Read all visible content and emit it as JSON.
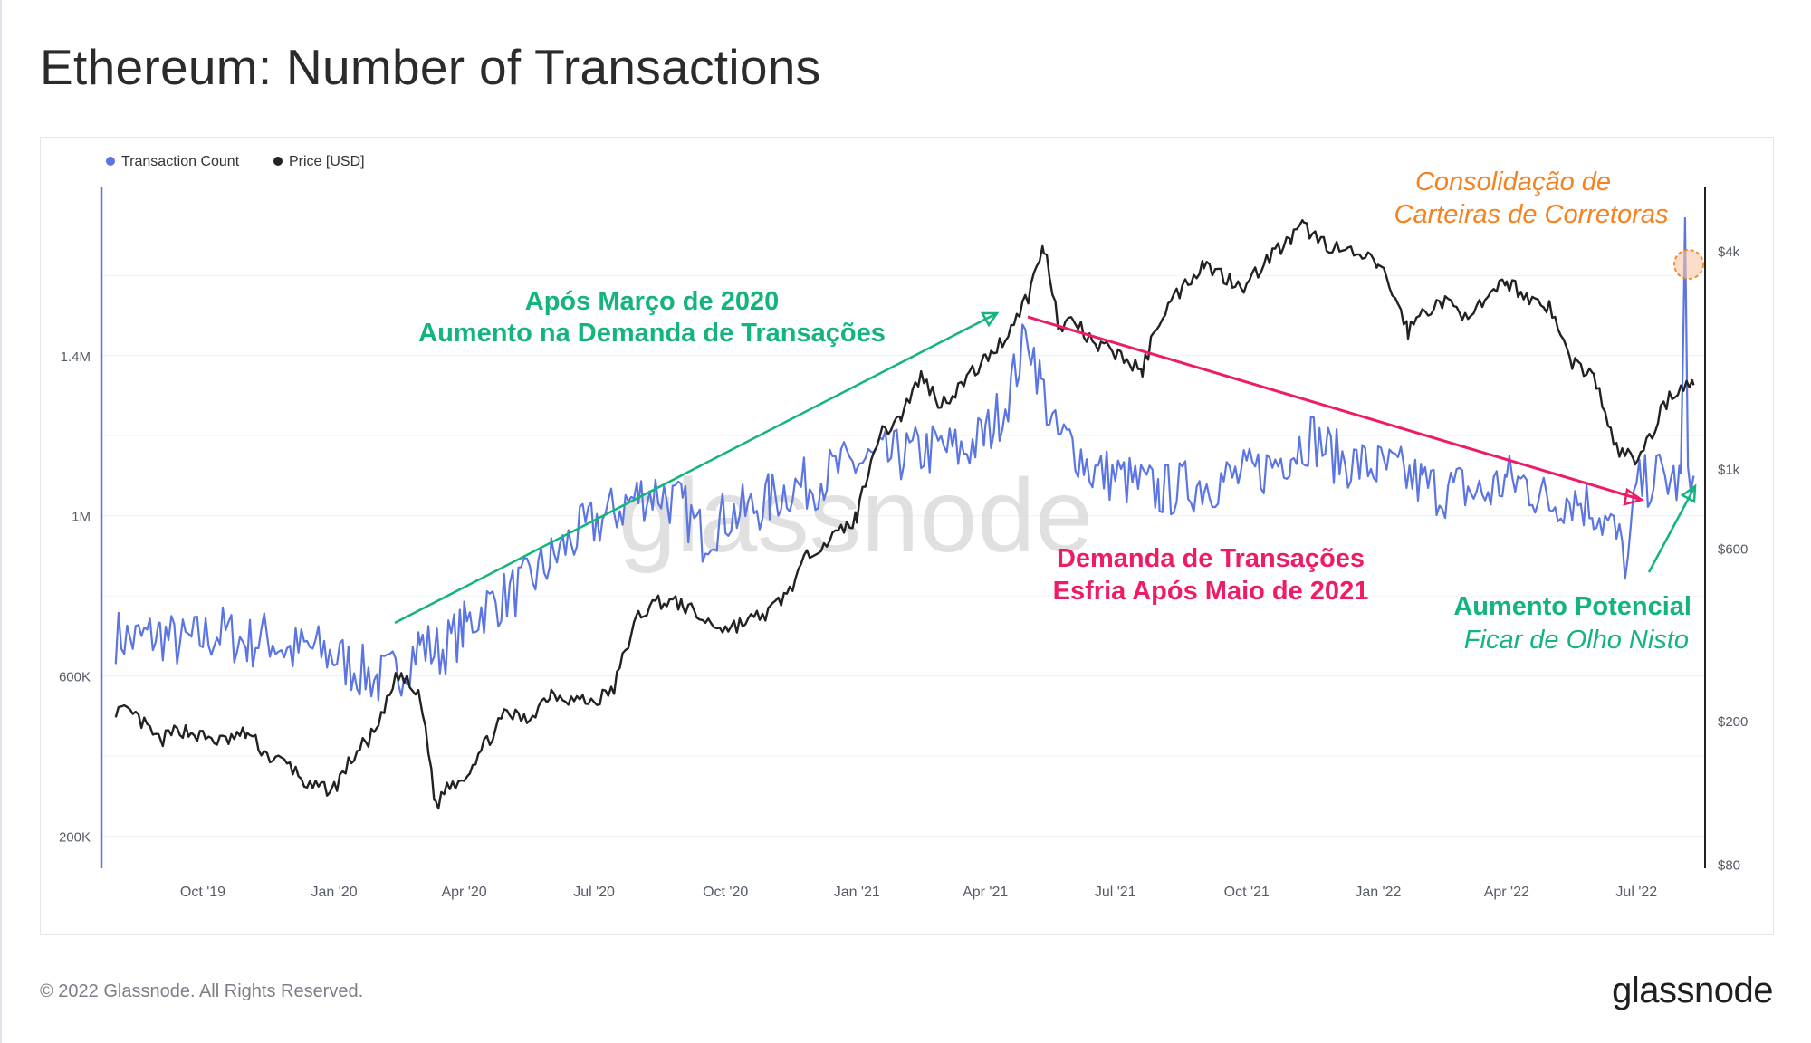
{
  "title": "Ethereum: Number of Transactions",
  "footer": {
    "copyright": "© 2022 Glassnode. All Rights Reserved.",
    "logo": "glassnode"
  },
  "watermark": "glassnode",
  "colors": {
    "transaction_count": "#5b75e3",
    "price": "#222222",
    "annotation_green": "#13b57a",
    "annotation_pink": "#ee1c68",
    "annotation_orange": "#f58220",
    "grid": "#eceff3",
    "tick_text": "#555b66"
  },
  "annotations": [
    {
      "lines": [
        "Após Março de 2020",
        "Aumento na Demanda de Transações"
      ],
      "color": "#13b57a",
      "italic": false,
      "bold": true
    },
    {
      "lines": [
        "Demanda de Transações",
        "Esfria Após Maio de 2021"
      ],
      "color": "#ee1c68",
      "italic": false,
      "bold": true
    },
    {
      "lines": [
        "Consolidação de",
        "Carteiras de Corretoras"
      ],
      "color": "#f58220",
      "italic": true,
      "bold": false
    },
    {
      "lines": [
        "Aumento Potencial"
      ],
      "color": "#13b57a",
      "italic": false,
      "bold": true
    },
    {
      "lines": [
        "Ficar de Olho Nisto"
      ],
      "color": "#13b57a",
      "italic": true,
      "bold": false
    }
  ],
  "chart_data": {
    "type": "line",
    "title": "Ethereum: Number of Transactions",
    "legend": {
      "placement": "top-left",
      "entries": [
        "Transaction Count",
        "Price [USD]"
      ]
    },
    "x_ticks": [
      "Oct '19",
      "Jan '20",
      "Apr '20",
      "Jul '20",
      "Oct '20",
      "Jan '21",
      "Apr '21",
      "Jul '21",
      "Oct '21",
      "Jan '22",
      "Apr '22",
      "Jul '22"
    ],
    "y_left": {
      "scale": "linear",
      "ticks": [
        "200K",
        "600K",
        "1M",
        "1.4M"
      ],
      "tick_values": [
        200000,
        600000,
        1000000,
        1400000
      ],
      "range": [
        120000,
        1820000
      ]
    },
    "y_right": {
      "scale": "log",
      "ticks": [
        "$80",
        "$200",
        "$600",
        "$1k",
        "$4k"
      ],
      "tick_values": [
        80,
        200,
        600,
        1000,
        4000
      ],
      "range": [
        78,
        6000
      ]
    },
    "grid": true,
    "series": [
      {
        "name": "Transaction Count",
        "axis": "left",
        "x": [
          "2019-08-01",
          "2019-08-15",
          "2019-09-01",
          "2019-09-15",
          "2019-10-01",
          "2019-10-15",
          "2019-11-01",
          "2019-11-15",
          "2019-12-01",
          "2019-12-15",
          "2020-01-01",
          "2020-01-15",
          "2020-02-01",
          "2020-02-15",
          "2020-03-01",
          "2020-03-15",
          "2020-04-01",
          "2020-04-15",
          "2020-05-01",
          "2020-05-15",
          "2020-06-01",
          "2020-06-15",
          "2020-07-01",
          "2020-07-15",
          "2020-08-01",
          "2020-08-15",
          "2020-09-01",
          "2020-09-15",
          "2020-10-01",
          "2020-10-15",
          "2020-11-01",
          "2020-11-15",
          "2020-12-01",
          "2020-12-15",
          "2021-01-01",
          "2021-01-15",
          "2021-02-01",
          "2021-02-15",
          "2021-03-01",
          "2021-03-15",
          "2021-04-01",
          "2021-04-15",
          "2021-05-01",
          "2021-05-10",
          "2021-05-20",
          "2021-06-01",
          "2021-06-15",
          "2021-07-01",
          "2021-07-15",
          "2021-08-01",
          "2021-08-15",
          "2021-09-01",
          "2021-09-15",
          "2021-10-01",
          "2021-10-15",
          "2021-11-01",
          "2021-11-15",
          "2021-12-01",
          "2021-12-15",
          "2022-01-01",
          "2022-01-15",
          "2022-02-01",
          "2022-02-15",
          "2022-03-01",
          "2022-03-15",
          "2022-04-01",
          "2022-04-15",
          "2022-05-01",
          "2022-05-15",
          "2022-06-01",
          "2022-06-15",
          "2022-06-25",
          "2022-07-01",
          "2022-07-15",
          "2022-08-01",
          "2022-08-04",
          "2022-08-06",
          "2022-08-10"
        ],
        "values": [
          700000,
          690000,
          705000,
          680000,
          695000,
          710000,
          680000,
          700000,
          660000,
          670000,
          650000,
          620000,
          590000,
          610000,
          680000,
          660000,
          720000,
          770000,
          800000,
          830000,
          890000,
          940000,
          980000,
          1010000,
          1050000,
          1060000,
          1020000,
          950000,
          1000000,
          1010000,
          1040000,
          1070000,
          1080000,
          1110000,
          1130000,
          1140000,
          1150000,
          1160000,
          1170000,
          1160000,
          1200000,
          1280000,
          1460000,
          1330000,
          1200000,
          1180000,
          1110000,
          1100000,
          1080000,
          1060000,
          1070000,
          1080000,
          1090000,
          1100000,
          1120000,
          1160000,
          1200000,
          1150000,
          1130000,
          1120000,
          1110000,
          1080000,
          1060000,
          1070000,
          1050000,
          1090000,
          1080000,
          1030000,
          1050000,
          1020000,
          960000,
          880000,
          1070000,
          1100000,
          1080000,
          1680000,
          1150000,
          1100000
        ]
      },
      {
        "name": "Price [USD]",
        "axis": "right",
        "x": [
          "2019-08-01",
          "2019-08-15",
          "2019-09-01",
          "2019-09-15",
          "2019-10-01",
          "2019-10-15",
          "2019-11-01",
          "2019-11-15",
          "2019-12-01",
          "2019-12-15",
          "2020-01-01",
          "2020-01-15",
          "2020-02-01",
          "2020-02-15",
          "2020-03-01",
          "2020-03-12",
          "2020-03-20",
          "2020-04-01",
          "2020-04-15",
          "2020-05-01",
          "2020-05-15",
          "2020-06-01",
          "2020-06-15",
          "2020-07-01",
          "2020-07-15",
          "2020-08-01",
          "2020-08-15",
          "2020-09-01",
          "2020-09-15",
          "2020-10-01",
          "2020-10-15",
          "2020-11-01",
          "2020-11-15",
          "2020-12-01",
          "2020-12-15",
          "2021-01-01",
          "2021-01-15",
          "2021-02-01",
          "2021-02-15",
          "2021-03-01",
          "2021-03-15",
          "2021-04-01",
          "2021-04-15",
          "2021-05-01",
          "2021-05-12",
          "2021-05-23",
          "2021-06-01",
          "2021-06-15",
          "2021-07-01",
          "2021-07-20",
          "2021-08-01",
          "2021-08-15",
          "2021-09-01",
          "2021-09-15",
          "2021-10-01",
          "2021-10-15",
          "2021-11-01",
          "2021-11-10",
          "2021-11-20",
          "2021-12-01",
          "2021-12-15",
          "2022-01-01",
          "2022-01-22",
          "2022-02-01",
          "2022-02-15",
          "2022-03-01",
          "2022-03-15",
          "2022-04-01",
          "2022-04-15",
          "2022-05-01",
          "2022-05-15",
          "2022-06-01",
          "2022-06-15",
          "2022-06-30",
          "2022-07-10",
          "2022-07-20",
          "2022-08-01",
          "2022-08-10"
        ],
        "values": [
          215,
          205,
          175,
          190,
          180,
          175,
          185,
          160,
          150,
          130,
          130,
          160,
          190,
          270,
          230,
          115,
          132,
          140,
          170,
          210,
          200,
          240,
          230,
          225,
          245,
          390,
          430,
          420,
          380,
          360,
          375,
          400,
          460,
          600,
          640,
          730,
          1200,
          1400,
          1800,
          1500,
          1700,
          2000,
          2300,
          3000,
          4100,
          2400,
          2600,
          2200,
          2100,
          1850,
          2600,
          3100,
          3700,
          3400,
          3200,
          3800,
          4300,
          4700,
          4300,
          4100,
          3900,
          3700,
          2400,
          2700,
          2900,
          2700,
          2800,
          3300,
          3000,
          2800,
          2000,
          1800,
          1150,
          1050,
          1200,
          1500,
          1700,
          1700
        ]
      }
    ]
  }
}
